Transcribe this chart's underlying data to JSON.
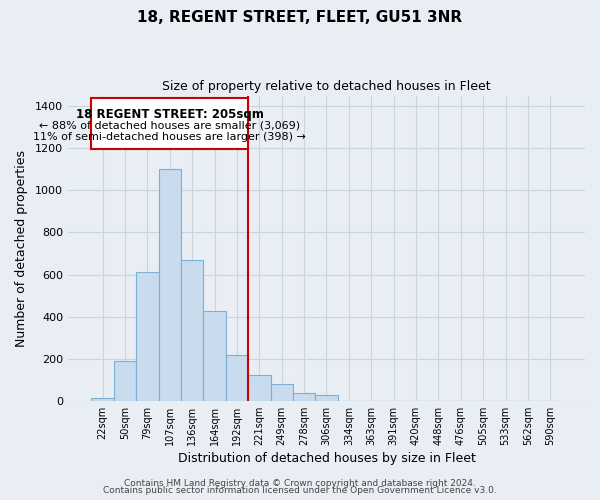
{
  "title": "18, REGENT STREET, FLEET, GU51 3NR",
  "subtitle": "Size of property relative to detached houses in Fleet",
  "xlabel": "Distribution of detached houses by size in Fleet",
  "ylabel": "Number of detached properties",
  "bar_color": "#c8dced",
  "bar_edge_color": "#7bafd4",
  "vline_color": "#cc0000",
  "categories": [
    "22sqm",
    "50sqm",
    "79sqm",
    "107sqm",
    "136sqm",
    "164sqm",
    "192sqm",
    "221sqm",
    "249sqm",
    "278sqm",
    "306sqm",
    "334sqm",
    "363sqm",
    "391sqm",
    "420sqm",
    "448sqm",
    "476sqm",
    "505sqm",
    "533sqm",
    "562sqm",
    "590sqm"
  ],
  "values": [
    15,
    190,
    610,
    1100,
    670,
    425,
    220,
    125,
    80,
    38,
    28,
    0,
    0,
    0,
    0,
    0,
    0,
    0,
    0,
    0,
    0
  ],
  "ylim": [
    0,
    1450
  ],
  "yticks": [
    0,
    200,
    400,
    600,
    800,
    1000,
    1200,
    1400
  ],
  "annotation_title": "18 REGENT STREET: 205sqm",
  "annotation_line1": "← 88% of detached houses are smaller (3,069)",
  "annotation_line2": "11% of semi-detached houses are larger (398) →",
  "footer_line1": "Contains HM Land Registry data © Crown copyright and database right 2024.",
  "footer_line2": "Contains public sector information licensed under the Open Government Licence v3.0.",
  "background_color": "#e8eef4",
  "plot_bg_color": "#e8eef4",
  "grid_color": "#c8d4e0"
}
